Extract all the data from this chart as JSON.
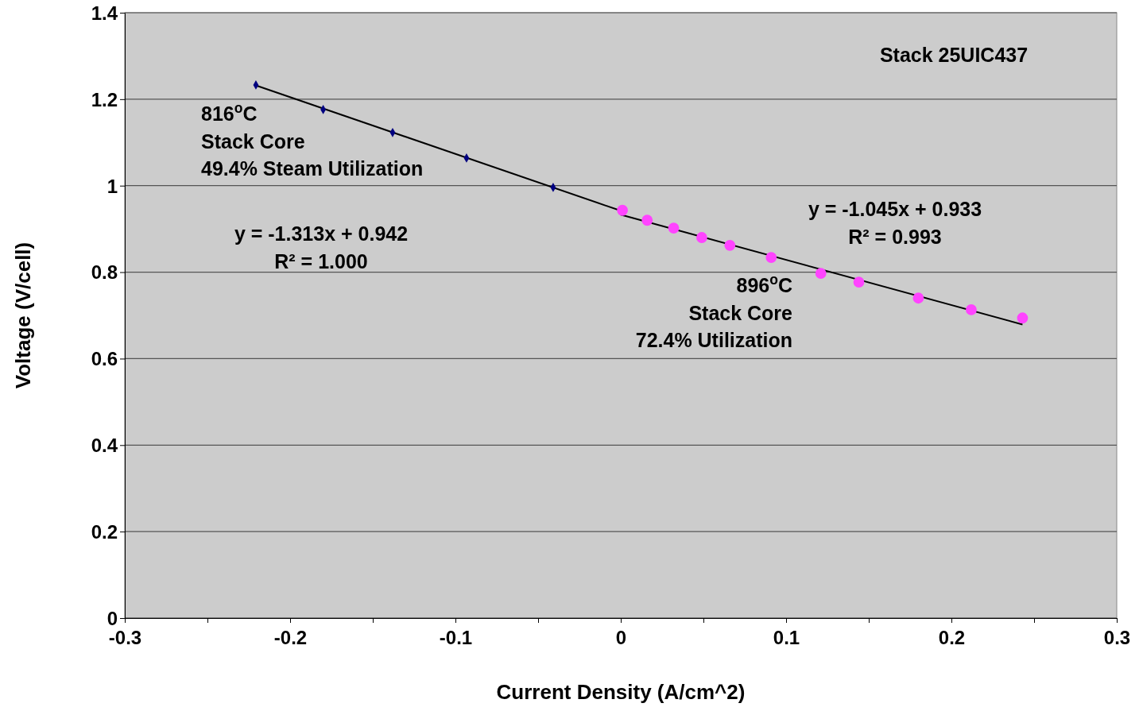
{
  "chart_data": {
    "type": "scatter",
    "xlabel": "Current Density (A/cm^2)",
    "ylabel": "Voltage (V/cell)",
    "xlim": [
      -0.3,
      0.3
    ],
    "ylim": [
      0,
      1.4
    ],
    "xticks": [
      -0.3,
      {
        "value": -0.25,
        "label": null
      },
      -0.2,
      {
        "value": -0.15,
        "label": null
      },
      -0.1,
      {
        "value": -0.05,
        "label": null
      },
      0,
      {
        "value": 0.05,
        "label": null
      },
      0.1,
      {
        "value": 0.15,
        "label": null
      },
      0.2,
      {
        "value": 0.25,
        "label": null
      },
      0.3
    ],
    "yticks": [
      0,
      0.2,
      0.4,
      0.6,
      0.8,
      1,
      1.2,
      1.4
    ],
    "grid": "y",
    "series": [
      {
        "marker": "diamond",
        "color": "#000080",
        "x": [
          -0.2207,
          -0.18,
          -0.138,
          -0.0933,
          -0.0409
        ],
        "values": [
          1.233,
          1.176,
          1.123,
          1.064,
          0.996
        ]
      },
      {
        "marker": "circle",
        "color": "#ff44ff",
        "x": [
          0.001,
          0.016,
          0.032,
          0.049,
          0.066,
          0.091,
          0.121,
          0.144,
          0.18,
          0.212,
          0.243
        ],
        "values": [
          0.943,
          0.92,
          0.902,
          0.88,
          0.862,
          0.834,
          0.797,
          0.777,
          0.74,
          0.713,
          0.694
        ]
      },
      {
        "type": "line",
        "color": "#000000",
        "x": [
          -0.2207,
          0
        ],
        "values": [
          1.232,
          0.942
        ]
      },
      {
        "type": "line",
        "color": "#000000",
        "x": [
          0,
          0.243
        ],
        "values": [
          0.933,
          0.679
        ]
      }
    ],
    "annotations": [
      "Stack 25UIC437",
      "816$^{o}$C\nStack Core\n49.4% Steam Utilization",
      "y = -1.313x + 0.942\nR² = 1.000",
      "y = -1.045x + 0.933\nR² = 0.993",
      "896$^{o}$C\nStack Core\n72.4% Utilization"
    ]
  }
}
